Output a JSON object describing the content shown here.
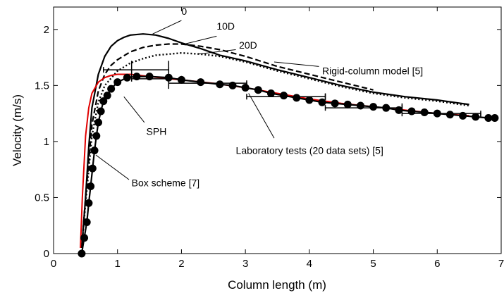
{
  "chart_data": {
    "type": "line",
    "xlabel": "Column length (m)",
    "ylabel": "Velocity (m/s)",
    "xlim": [
      0,
      7
    ],
    "ylim": [
      0,
      2.2
    ],
    "xticks": [
      0,
      1,
      2,
      3,
      4,
      5,
      6,
      7
    ],
    "yticks": [
      0,
      0.5,
      1,
      1.5,
      2
    ],
    "grid": false,
    "series": [
      {
        "name": "0",
        "color": "#000000",
        "style": "solid",
        "x": [
          0.44,
          0.5,
          0.55,
          0.6,
          0.7,
          0.8,
          0.9,
          1.0,
          1.1,
          1.2,
          1.4,
          1.6,
          1.8,
          2.0,
          2.3,
          2.6,
          3.0,
          3.5,
          4.0,
          4.5,
          5.0,
          5.5,
          6.0,
          6.5
        ],
        "y": [
          0.05,
          0.5,
          0.95,
          1.3,
          1.6,
          1.76,
          1.85,
          1.9,
          1.93,
          1.95,
          1.96,
          1.95,
          1.92,
          1.88,
          1.83,
          1.77,
          1.72,
          1.64,
          1.57,
          1.5,
          1.44,
          1.4,
          1.37,
          1.33
        ]
      },
      {
        "name": "10D",
        "color": "#000000",
        "style": "dashed",
        "x": [
          0.44,
          0.5,
          0.6,
          0.7,
          0.8,
          0.9,
          1.0,
          1.2,
          1.4,
          1.6,
          1.8,
          2.0,
          2.3,
          2.6,
          3.0,
          3.5,
          4.0,
          4.5,
          5.0
        ],
        "y": [
          0.05,
          0.5,
          1.15,
          1.45,
          1.6,
          1.68,
          1.73,
          1.8,
          1.84,
          1.86,
          1.87,
          1.87,
          1.85,
          1.82,
          1.76,
          1.67,
          1.6,
          1.53,
          1.46
        ]
      },
      {
        "name": "20D",
        "color": "#000000",
        "style": "dotted",
        "x": [
          0.44,
          0.5,
          0.6,
          0.7,
          0.8,
          1.0,
          1.2,
          1.4,
          1.6,
          1.8,
          2.0,
          2.3,
          2.6,
          3.0,
          3.5,
          4.0,
          4.5,
          5.0,
          5.5,
          6.0,
          6.5
        ],
        "y": [
          0.05,
          0.45,
          1.05,
          1.35,
          1.5,
          1.63,
          1.7,
          1.74,
          1.77,
          1.78,
          1.79,
          1.78,
          1.76,
          1.71,
          1.63,
          1.56,
          1.49,
          1.43,
          1.39,
          1.36,
          1.32
        ]
      },
      {
        "name": "SPH",
        "color": "#e00000",
        "style": "solid",
        "x": [
          0.42,
          0.45,
          0.5,
          0.55,
          0.6,
          0.7,
          0.8,
          0.9,
          1.0,
          1.1,
          1.2,
          1.5,
          1.8,
          2.0,
          2.5,
          3.0,
          3.5,
          4.0,
          4.5,
          5.0,
          5.5,
          6.0,
          6.5
        ],
        "y": [
          0.05,
          0.5,
          1.05,
          1.3,
          1.43,
          1.53,
          1.57,
          1.59,
          1.6,
          1.6,
          1.6,
          1.58,
          1.56,
          1.55,
          1.52,
          1.48,
          1.43,
          1.38,
          1.34,
          1.31,
          1.28,
          1.25,
          1.23
        ]
      },
      {
        "name": "Box scheme [7]",
        "color": "#000000",
        "style": "solid",
        "markers": true,
        "x": [
          0.44,
          0.48,
          0.52,
          0.55,
          0.58,
          0.61,
          0.64,
          0.67,
          0.7,
          0.74,
          0.78,
          0.84,
          0.9,
          1.0,
          1.15,
          1.3,
          1.5,
          1.8,
          2.0,
          2.3,
          2.6,
          2.8,
          3.0,
          3.2,
          3.4,
          3.6,
          3.8,
          4.0,
          4.2,
          4.4,
          4.6,
          4.8,
          5.0,
          5.2,
          5.4,
          5.6,
          5.8,
          6.0,
          6.2,
          6.4,
          6.6,
          6.8,
          6.9
        ],
        "y": [
          0.0,
          0.14,
          0.28,
          0.45,
          0.6,
          0.76,
          0.92,
          1.05,
          1.17,
          1.27,
          1.36,
          1.41,
          1.47,
          1.53,
          1.57,
          1.58,
          1.58,
          1.57,
          1.55,
          1.53,
          1.51,
          1.5,
          1.48,
          1.46,
          1.43,
          1.41,
          1.39,
          1.37,
          1.35,
          1.34,
          1.33,
          1.32,
          1.31,
          1.3,
          1.28,
          1.27,
          1.26,
          1.25,
          1.24,
          1.23,
          1.22,
          1.21,
          1.21
        ]
      }
    ],
    "error_bars": [
      {
        "x1": 0.78,
        "x2": 1.8,
        "y": 1.64,
        "ybar_x": 1.22,
        "ybar_low": 1.57,
        "ybar_high": 1.72
      },
      {
        "x1": 1.22,
        "x2": 2.0,
        "y": 1.56,
        "ybar_x": 1.8,
        "ybar_low": 1.47,
        "ybar_high": 1.72
      },
      {
        "x1": 1.8,
        "x2": 3.02,
        "y": 1.52,
        "ybar_x": 3.02,
        "ybar_low": 1.45,
        "ybar_high": 1.53
      },
      {
        "x1": 3.02,
        "x2": 4.25,
        "y": 1.4,
        "ybar_x": 4.25,
        "ybar_low": 1.37,
        "ybar_high": 1.43
      },
      {
        "x1": 4.25,
        "x2": 5.45,
        "y": 1.3,
        "ybar_x": 5.45,
        "ybar_low": 1.28,
        "ybar_high": 1.34
      },
      {
        "x1": 5.45,
        "x2": 6.68,
        "y": 1.25,
        "ybar_x": 6.68,
        "ybar_low": 1.21,
        "ybar_high": 1.26
      }
    ],
    "annotations": [
      {
        "text": "0",
        "label_x": 2.0,
        "label_y": 2.13,
        "line": [
          2.0,
          2.08,
          1.55,
          1.96
        ]
      },
      {
        "text": "10D",
        "label_x": 2.55,
        "label_y": 2.0,
        "line": [
          2.55,
          1.94,
          2.05,
          1.87
        ]
      },
      {
        "text": "20D",
        "label_x": 2.9,
        "label_y": 1.83,
        "line": [
          2.85,
          1.82,
          2.25,
          1.78
        ]
      },
      {
        "text": "Rigid-column model [5]",
        "label_x": 4.2,
        "label_y": 1.6,
        "line": [
          4.15,
          1.67,
          3.45,
          1.71
        ]
      },
      {
        "text": "SPH",
        "label_x": 1.45,
        "label_y": 1.06,
        "line": [
          1.42,
          1.17,
          1.1,
          1.4
        ]
      },
      {
        "text": "Laboratory tests (20 data sets) [5]",
        "label_x": 2.85,
        "label_y": 0.89,
        "line": [
          3.45,
          1.03,
          3.05,
          1.43
        ]
      },
      {
        "text": "Box scheme [7]",
        "label_x": 1.22,
        "label_y": 0.6,
        "line": [
          1.18,
          0.66,
          0.66,
          0.88
        ]
      }
    ]
  }
}
